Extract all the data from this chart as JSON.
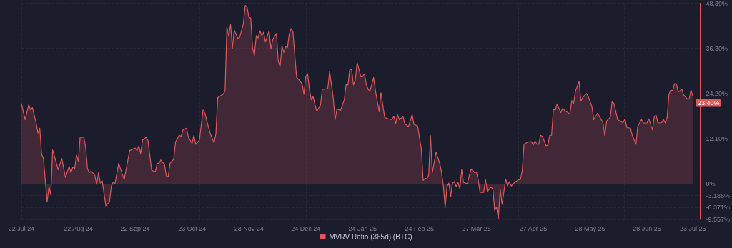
{
  "chart_data": {
    "type": "area",
    "legend": "bottom",
    "grid": true,
    "marker": "none",
    "xlim": [
      "2024-07-22",
      "2025-07-27"
    ],
    "xticks": [
      {
        "value": "2024-07-22",
        "label": "22 Jul 24"
      },
      {
        "value": "2024-08-22",
        "label": "22 Aug 24"
      },
      {
        "value": "2024-09-22",
        "label": "22 Sep 24"
      },
      {
        "value": "2024-10-23",
        "label": "23 Oct 24"
      },
      {
        "value": "2024-11-23",
        "label": "23 Nov 24"
      },
      {
        "value": "2024-12-24",
        "label": "24 Dec 24"
      },
      {
        "value": "2025-01-24",
        "label": "24 Jan 25"
      },
      {
        "value": "2025-02-24",
        "label": "24 Feb 25"
      },
      {
        "value": "2025-03-27",
        "label": "27 Mar 25"
      },
      {
        "value": "2025-04-27",
        "label": "27 Apr 25"
      },
      {
        "value": "2025-05-28",
        "label": "28 May 25"
      },
      {
        "value": "2025-06-28",
        "label": "28 Jun 25"
      },
      {
        "value": "2025-07-23",
        "label": "23 Jul 25"
      }
    ],
    "ylim": [
      -9.557,
      48.39
    ],
    "yticks": [
      {
        "value": -9.557,
        "label": "-9.557%"
      },
      {
        "value": -6.371,
        "label": "-6.371%"
      },
      {
        "value": -3.186,
        "label": "-3.186%"
      },
      {
        "value": 0,
        "label": "0%"
      },
      {
        "value": 12.1,
        "label": "12.10%"
      },
      {
        "value": 24.2,
        "label": "24.20%"
      },
      {
        "value": 36.3,
        "label": "36.30%"
      },
      {
        "value": 48.39,
        "label": "48.39%"
      }
    ],
    "ref_lines": [
      {
        "axis": "y",
        "value": 0,
        "color": "#e0575a"
      }
    ],
    "annotations": [
      {
        "text": "23.40%",
        "x": "2025-07-23",
        "y": 23.4
      }
    ],
    "x": [
      "2024-07-22",
      "2024-07-24",
      "2024-07-26",
      "2024-07-27",
      "2024-07-28",
      "2024-07-30",
      "2024-07-31",
      "2024-08-01",
      "2024-08-02",
      "2024-08-03",
      "2024-08-05",
      "2024-08-06",
      "2024-08-07",
      "2024-08-08",
      "2024-08-09",
      "2024-08-11",
      "2024-08-13",
      "2024-08-15",
      "2024-08-17",
      "2024-08-18",
      "2024-08-19",
      "2024-08-20",
      "2024-08-21",
      "2024-08-22",
      "2024-08-23",
      "2024-08-25",
      "2024-08-26",
      "2024-08-27",
      "2024-08-28",
      "2024-08-29",
      "2024-08-31",
      "2024-09-01",
      "2024-09-02",
      "2024-09-03",
      "2024-09-04",
      "2024-09-06",
      "2024-09-08",
      "2024-09-09",
      "2024-09-10",
      "2024-09-11",
      "2024-09-13",
      "2024-09-16",
      "2024-09-19",
      "2024-09-22",
      "2024-09-23",
      "2024-09-24",
      "2024-09-25",
      "2024-09-26",
      "2024-09-28",
      "2024-09-29",
      "2024-10-01",
      "2024-10-03",
      "2024-10-04",
      "2024-10-05",
      "2024-10-06",
      "2024-10-08",
      "2024-10-09",
      "2024-10-10",
      "2024-10-11",
      "2024-10-13",
      "2024-10-14",
      "2024-10-16",
      "2024-10-17",
      "2024-10-18",
      "2024-10-20",
      "2024-10-21",
      "2024-10-23",
      "2024-10-24",
      "2024-10-25",
      "2024-10-27",
      "2024-10-29",
      "2024-10-30",
      "2024-11-01",
      "2024-11-02",
      "2024-11-04",
      "2024-11-05",
      "2024-11-06",
      "2024-11-09",
      "2024-11-10",
      "2024-11-11",
      "2024-11-12",
      "2024-11-13",
      "2024-11-14",
      "2024-11-15",
      "2024-11-17",
      "2024-11-18",
      "2024-11-20",
      "2024-11-21",
      "2024-11-22",
      "2024-11-23",
      "2024-11-24",
      "2024-11-25",
      "2024-11-26",
      "2024-11-27",
      "2024-11-28",
      "2024-11-29",
      "2024-11-30",
      "2024-12-01",
      "2024-12-02",
      "2024-12-04",
      "2024-12-05",
      "2024-12-06",
      "2024-12-08",
      "2024-12-09",
      "2024-12-10",
      "2024-12-11",
      "2024-12-12",
      "2024-12-13",
      "2024-12-14",
      "2024-12-15",
      "2024-12-16",
      "2024-12-17",
      "2024-12-19",
      "2024-12-20",
      "2024-12-22",
      "2024-12-23",
      "2024-12-24",
      "2024-12-25",
      "2024-12-26",
      "2024-12-27",
      "2024-12-28",
      "2024-12-29",
      "2024-12-30",
      "2025-01-01",
      "2025-01-02",
      "2025-01-05",
      "2025-01-06",
      "2025-01-08",
      "2025-01-09",
      "2025-01-10",
      "2025-01-12",
      "2025-01-14",
      "2025-01-15",
      "2025-01-16",
      "2025-01-17",
      "2025-01-18",
      "2025-01-19",
      "2025-01-20",
      "2025-01-21",
      "2025-01-23",
      "2025-01-24",
      "2025-01-25",
      "2025-01-26",
      "2025-01-27",
      "2025-01-28",
      "2025-01-30",
      "2025-01-31",
      "2025-02-02",
      "2025-02-03",
      "2025-02-05",
      "2025-02-07",
      "2025-02-09",
      "2025-02-10",
      "2025-02-11",
      "2025-02-12",
      "2025-02-13",
      "2025-02-15",
      "2025-02-16",
      "2025-02-18",
      "2025-02-20",
      "2025-02-21",
      "2025-02-23",
      "2025-02-25",
      "2025-02-26",
      "2025-02-27",
      "2025-02-28",
      "2025-03-01",
      "2025-03-02",
      "2025-03-03",
      "2025-03-05",
      "2025-03-07",
      "2025-03-08",
      "2025-03-09",
      "2025-03-10",
      "2025-03-11",
      "2025-03-12",
      "2025-03-13",
      "2025-03-14",
      "2025-03-15",
      "2025-03-16",
      "2025-03-17",
      "2025-03-18",
      "2025-03-19",
      "2025-03-20",
      "2025-03-22",
      "2025-03-24",
      "2025-03-25",
      "2025-03-26",
      "2025-03-27",
      "2025-03-28",
      "2025-03-29",
      "2025-03-31",
      "2025-04-01",
      "2025-04-02",
      "2025-04-04",
      "2025-04-05",
      "2025-04-06",
      "2025-04-07",
      "2025-04-08",
      "2025-04-09",
      "2025-04-10",
      "2025-04-12",
      "2025-04-13",
      "2025-04-14",
      "2025-04-15",
      "2025-04-17",
      "2025-04-19",
      "2025-04-20",
      "2025-04-21",
      "2025-04-22",
      "2025-04-24",
      "2025-04-26",
      "2025-04-27",
      "2025-04-28",
      "2025-04-29",
      "2025-04-30",
      "2025-05-01",
      "2025-05-02",
      "2025-05-04",
      "2025-05-05",
      "2025-05-06",
      "2025-05-07",
      "2025-05-08",
      "2025-05-09",
      "2025-05-10",
      "2025-05-12",
      "2025-05-13",
      "2025-05-14",
      "2025-05-17",
      "2025-05-18",
      "2025-05-19",
      "2025-05-20",
      "2025-05-22",
      "2025-05-23",
      "2025-05-24",
      "2025-05-26",
      "2025-05-27",
      "2025-05-29",
      "2025-05-30",
      "2025-06-01",
      "2025-06-02",
      "2025-06-04",
      "2025-06-05",
      "2025-06-06",
      "2025-06-08",
      "2025-06-09",
      "2025-06-10",
      "2025-06-12",
      "2025-06-14",
      "2025-06-15",
      "2025-06-16",
      "2025-06-17",
      "2025-06-19",
      "2025-06-20",
      "2025-06-22",
      "2025-06-23",
      "2025-06-25",
      "2025-06-26",
      "2025-06-28",
      "2025-06-29",
      "2025-07-01",
      "2025-07-02",
      "2025-07-03",
      "2025-07-04",
      "2025-07-06",
      "2025-07-07",
      "2025-07-08",
      "2025-07-09",
      "2025-07-10",
      "2025-07-11",
      "2025-07-12",
      "2025-07-13",
      "2025-07-14",
      "2025-07-15",
      "2025-07-17",
      "2025-07-18",
      "2025-07-20",
      "2025-07-21",
      "2025-07-22",
      "2025-07-23"
    ],
    "series": [
      {
        "name": "MVRV Ratio (365d) (BTC)",
        "color": "#e0575a",
        "values": [
          21.5,
          17.2,
          21.2,
          19.8,
          20.4,
          16.3,
          13.6,
          14.9,
          7.9,
          6.8,
          -4.9,
          -0.8,
          -3.0,
          9.1,
          7.4,
          3.8,
          6.8,
          1.7,
          4.7,
          3.0,
          4.5,
          4.0,
          7.7,
          6.0,
          12.5,
          12.5,
          9.8,
          4.0,
          3.0,
          3.4,
          2.3,
          -0.2,
          3.0,
          0.2,
          0.9,
          -5.9,
          -4.9,
          -0.6,
          0.4,
          0,
          5.5,
          1.1,
          8.9,
          9.6,
          8.9,
          10.2,
          8.1,
          11.7,
          12.5,
          11.5,
          3.6,
          3.2,
          5.5,
          5.5,
          6.4,
          5.1,
          2.1,
          1.9,
          5.5,
          6.6,
          11.2,
          13.0,
          12.7,
          14.4,
          14.9,
          12.5,
          10.8,
          13.0,
          10.6,
          11.7,
          19.8,
          18.9,
          15.1,
          13.4,
          11.0,
          13.4,
          23.1,
          24.0,
          24.9,
          42.0,
          39.5,
          42.7,
          36.3,
          41.2,
          38.9,
          39.3,
          42.9,
          47.8,
          47.3,
          44.6,
          44.4,
          36.3,
          34.4,
          39.7,
          39.1,
          41.0,
          39.7,
          40.6,
          38.0,
          41.0,
          36.1,
          38.7,
          40.3,
          32.9,
          31.4,
          37.0,
          35.2,
          36.7,
          36.5,
          40.1,
          41.6,
          40.8,
          28.5,
          28.0,
          26.8,
          24.0,
          28.7,
          29.5,
          25.3,
          22.5,
          23.4,
          21.2,
          19.5,
          21.0,
          25.3,
          25.5,
          30.2,
          22.9,
          17.2,
          20.0,
          19.7,
          22.5,
          26.6,
          26.5,
          30.6,
          30.6,
          26.5,
          27.8,
          32.5,
          28.7,
          28.7,
          29.5,
          26.6,
          25.3,
          24.8,
          28.5,
          24.9,
          19.3,
          24.4,
          17.8,
          17.4,
          17.2,
          18.1,
          16.1,
          18.5,
          17.2,
          18.0,
          16.1,
          15.3,
          18.5,
          15.9,
          15.5,
          9.3,
          0.9,
          1.5,
          1.3,
          2.3,
          12.9,
          3.0,
          8.5,
          5.5,
          3.2,
          -0.6,
          -6.4,
          -0.8,
          0.2,
          -3.4,
          0.2,
          0.6,
          -0.8,
          0.4,
          -1.3,
          3.8,
          0.4,
          0,
          3.8,
          3.6,
          3.0,
          3.2,
          1.1,
          -2.3,
          -2.3,
          1.1,
          -2.1,
          -0.8,
          -1.5,
          -7.2,
          -6.2,
          -9.4,
          -1.5,
          -5.5,
          1.3,
          -0.6,
          0.6,
          -0.6,
          0.4,
          1.1,
          1.1,
          3.6,
          10.6,
          11.2,
          11.3,
          10.4,
          11.5,
          10.6,
          10.6,
          13.0,
          12.7,
          10.2,
          10.4,
          13.0,
          13.0,
          20.0,
          19.7,
          21.4,
          19.1,
          20.2,
          19.7,
          18.7,
          22.3,
          21.5,
          24.8,
          27.4,
          22.1,
          23.1,
          24.2,
          23.4,
          20.6,
          17.2,
          18.9,
          18.1,
          16.4,
          12.9,
          16.8,
          17.8,
          22.1,
          21.5,
          17.2,
          16.6,
          16.4,
          17.4,
          15.1,
          14.9,
          13.0,
          10.6,
          15.5,
          17.2,
          16.3,
          16.3,
          17.4,
          14.4,
          18.1,
          18.3,
          16.3,
          16.4,
          17.2,
          16.3,
          17.8,
          24.0,
          25.1,
          24.9,
          26.8,
          26.8,
          24.6,
          25.3,
          23.8,
          22.7,
          22.7,
          25.1,
          23.4
        ]
      }
    ]
  }
}
